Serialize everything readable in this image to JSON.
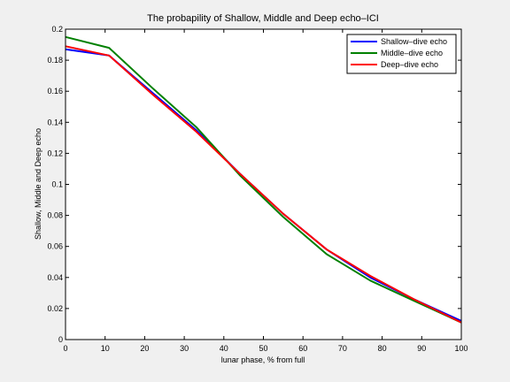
{
  "chart_data": {
    "type": "line",
    "title": "The probapility of Shallow, Middle and Deep echo–ICI",
    "xlabel": "lunar phase, % from full",
    "ylabel": "Shallow, Middle and Deep echo",
    "xlim": [
      0,
      100
    ],
    "ylim": [
      0,
      0.2
    ],
    "xticks": [
      0,
      10,
      20,
      30,
      40,
      50,
      60,
      70,
      80,
      90,
      100
    ],
    "yticks": [
      0,
      0.02,
      0.04,
      0.06,
      0.08,
      0.1,
      0.12,
      0.14,
      0.16,
      0.18,
      0.2
    ],
    "ytick_labels": [
      "0",
      "0.02",
      "0.04",
      "0.06",
      "0.08",
      "0.1",
      "0.12",
      "0.14",
      "0.16",
      "0.18",
      "0.2"
    ],
    "legend_position": "top-right",
    "grid": false,
    "x": [
      0,
      11,
      22,
      33,
      44,
      55,
      66,
      77,
      88,
      100
    ],
    "series": [
      {
        "name": "Shallow–dive echo",
        "color": "#0000ff",
        "values": [
          0.187,
          0.183,
          0.159,
          0.135,
          0.107,
          0.081,
          0.058,
          0.04,
          0.026,
          0.012
        ]
      },
      {
        "name": "Middle–dive echo",
        "color": "#008000",
        "values": [
          0.195,
          0.188,
          0.162,
          0.137,
          0.106,
          0.079,
          0.055,
          0.038,
          0.025,
          0.011
        ]
      },
      {
        "name": "Deep–dive echo",
        "color": "#ff0000",
        "values": [
          0.189,
          0.183,
          0.158,
          0.134,
          0.107,
          0.081,
          0.058,
          0.041,
          0.026,
          0.011
        ]
      }
    ]
  }
}
